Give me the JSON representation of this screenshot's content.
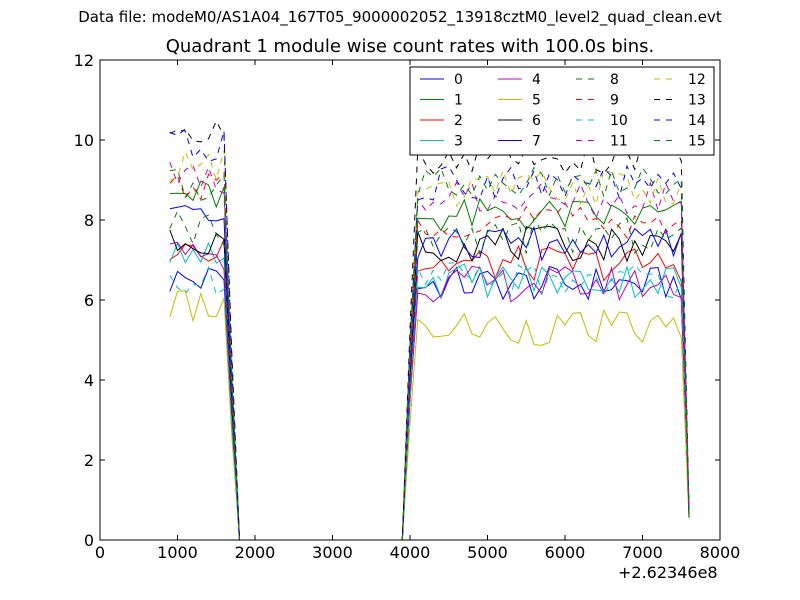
{
  "chart_data": {
    "type": "line",
    "suptitle": "Data file: modeM0/AS1A04_167T05_9000002052_13918cztM0_level2_quad_clean.evt",
    "title": "Quadrant 1 module wise count rates with 100.0s bins.",
    "xlabel": "",
    "ylabel": "",
    "xlim": [
      0,
      8000
    ],
    "ylim": [
      0,
      12
    ],
    "x_offset_label": "+2.62346e8",
    "x_ticks": [
      0,
      1000,
      2000,
      3000,
      4000,
      5000,
      6000,
      7000,
      8000
    ],
    "x_tick_labels": [
      "0",
      "1000",
      "2000",
      "3000",
      "4000",
      "5000",
      "6000",
      "7000",
      "8000"
    ],
    "y_ticks": [
      0,
      2,
      4,
      6,
      8,
      10,
      12
    ],
    "y_tick_labels": [
      "0",
      "2",
      "4",
      "6",
      "8",
      "10",
      "12"
    ],
    "grid": false,
    "legend_position": "top-right",
    "legend_columns": 4,
    "segments": [
      {
        "x_start": 900,
        "x_end": 1700,
        "step": 100
      },
      {
        "x_start": 1800,
        "x_end": 3900,
        "step": 100
      },
      {
        "x_start": 4000,
        "x_end": 7600,
        "step": 100
      }
    ],
    "series": [
      {
        "name": "0",
        "color": "#0000ff",
        "dash": "solid",
        "level": 6.4,
        "early_level": 6.5
      },
      {
        "name": "1",
        "color": "#008000",
        "dash": "solid",
        "level": 8.1,
        "early_level": 8.6
      },
      {
        "name": "2",
        "color": "#ff0000",
        "dash": "solid",
        "level": 6.9,
        "early_level": 7.4
      },
      {
        "name": "3",
        "color": "#00bfbf",
        "dash": "solid",
        "level": 6.5,
        "early_level": 7.0
      },
      {
        "name": "4",
        "color": "#bf00bf",
        "dash": "solid",
        "level": 6.4,
        "early_level": 7.0
      },
      {
        "name": "5",
        "color": "#bfbf00",
        "dash": "solid",
        "level": 5.3,
        "early_level": 5.8
      },
      {
        "name": "6",
        "color": "#000000",
        "dash": "solid",
        "level": 7.4,
        "early_level": 7.6
      },
      {
        "name": "7",
        "color": "#0000ff",
        "dash": "solid",
        "level": 7.4,
        "early_level": 8.0
      },
      {
        "name": "8",
        "color": "#008000",
        "dash": "dashed",
        "level": 7.6,
        "early_level": 7.8
      },
      {
        "name": "9",
        "color": "#ff0000",
        "dash": "dashed",
        "level": 8.0,
        "early_level": 8.8
      },
      {
        "name": "10",
        "color": "#00bfbf",
        "dash": "dashed",
        "level": 6.5,
        "early_level": 6.4
      },
      {
        "name": "11",
        "color": "#bf00bf",
        "dash": "dashed",
        "level": 8.5,
        "early_level": 9.0
      },
      {
        "name": "12",
        "color": "#bfbf00",
        "dash": "dashed",
        "level": 8.8,
        "early_level": 9.4
      },
      {
        "name": "13",
        "color": "#000000",
        "dash": "dashed",
        "level": 9.6,
        "early_level": 10.4
      },
      {
        "name": "14",
        "color": "#0000ff",
        "dash": "dashed",
        "level": 8.9,
        "early_level": 9.8
      },
      {
        "name": "15",
        "color": "#008000",
        "dash": "dashed",
        "level": 9.0,
        "early_level": 8.9
      }
    ]
  }
}
